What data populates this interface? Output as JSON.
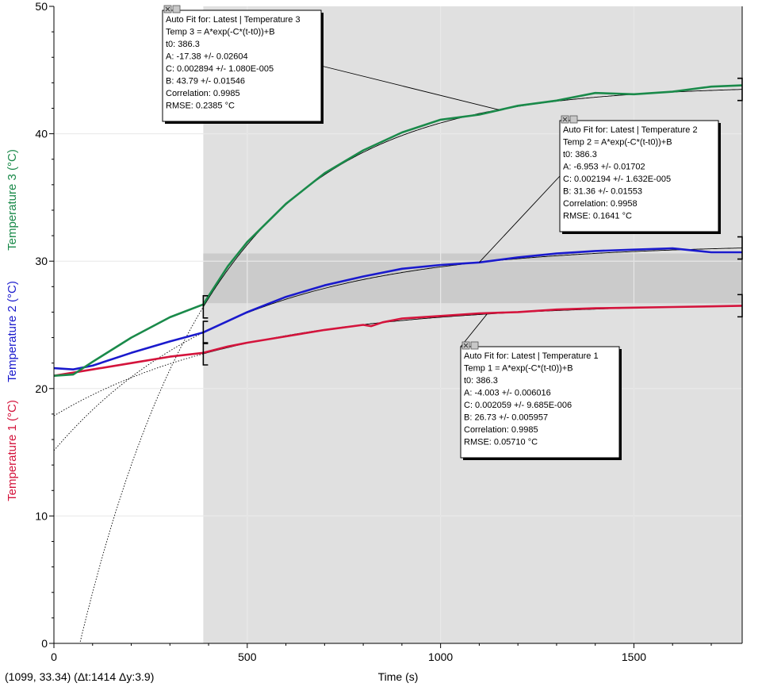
{
  "status_bar": "(1099, 33.34) (Δt:1414 Δy:3.9)",
  "chart_data": {
    "type": "line",
    "xlabel": "Time (s)",
    "xlim": [
      0,
      1780
    ],
    "ylim": [
      0,
      50
    ],
    "x_ticks": [
      0,
      500,
      1000,
      1500
    ],
    "y_ticks": [
      0,
      10,
      20,
      30,
      40,
      50
    ],
    "grid": true,
    "selection_region": {
      "x_start": 386.3,
      "x_end": 1780
    },
    "y_selection_band": [
      26.7,
      30.6
    ],
    "y_axis_labels": [
      {
        "text": "Temperature 1 (°C)",
        "color": "#d4143c"
      },
      {
        "text": "Temperature 2 (°C)",
        "color": "#1a1acd"
      },
      {
        "text": "Temperature 3 (°C)",
        "color": "#1a8a4a"
      }
    ],
    "series": [
      {
        "name": "Temperature 1",
        "color": "#d4143c",
        "x": [
          0,
          100,
          200,
          300,
          386,
          450,
          500,
          600,
          700,
          800,
          820,
          850,
          900,
          1000,
          1100,
          1200,
          1300,
          1400,
          1500,
          1600,
          1700,
          1780
        ],
        "y": [
          21.0,
          21.5,
          22.0,
          22.5,
          22.8,
          23.3,
          23.6,
          24.1,
          24.6,
          25.0,
          24.9,
          25.2,
          25.5,
          25.7,
          25.9,
          26.0,
          26.2,
          26.3,
          26.35,
          26.4,
          26.45,
          26.5
        ]
      },
      {
        "name": "Temperature 2",
        "color": "#1a1acd",
        "x": [
          0,
          50,
          100,
          200,
          300,
          386,
          450,
          500,
          600,
          700,
          800,
          900,
          1000,
          1100,
          1200,
          1300,
          1400,
          1500,
          1600,
          1700,
          1780
        ],
        "y": [
          21.6,
          21.5,
          21.8,
          22.8,
          23.7,
          24.4,
          25.3,
          26.0,
          27.2,
          28.1,
          28.8,
          29.4,
          29.7,
          29.9,
          30.3,
          30.6,
          30.8,
          30.9,
          31.0,
          30.7,
          30.7
        ]
      },
      {
        "name": "Temperature 3",
        "color": "#1a8a4a",
        "x": [
          0,
          50,
          100,
          200,
          300,
          386,
          420,
          450,
          500,
          600,
          700,
          800,
          900,
          1000,
          1100,
          1200,
          1300,
          1400,
          1500,
          1600,
          1700,
          1780
        ],
        "y": [
          21.0,
          21.1,
          22.1,
          24.0,
          25.6,
          26.6,
          28.2,
          29.6,
          31.5,
          34.5,
          36.9,
          38.7,
          40.1,
          41.1,
          41.5,
          42.2,
          42.6,
          43.2,
          43.1,
          43.3,
          43.7,
          43.8
        ]
      }
    ],
    "fit_curves": [
      {
        "name": "Temperature 3",
        "A": -17.38,
        "C": 0.002894,
        "B": 43.79,
        "t0": 386.3
      },
      {
        "name": "Temperature 2",
        "A": -6.953,
        "C": 0.002194,
        "B": 31.36,
        "t0": 386.3
      },
      {
        "name": "Temperature 1",
        "A": -4.003,
        "C": 0.002059,
        "B": 26.73,
        "t0": 386.3
      }
    ],
    "annotations": [
      {
        "series": "Temperature 3",
        "lines": [
          "Auto Fit for: Latest | Temperature 3",
          "Temp 3 = A*exp(-C*(t-t0))+B",
          "t0: 386.3",
          "A: -17.38 +/- 0.02604",
          "C: 0.002894 +/- 1.080E-005",
          "B: 43.79 +/- 0.01546",
          "Correlation: 0.9985",
          "RMSE: 0.2385 °C"
        ]
      },
      {
        "series": "Temperature 2",
        "lines": [
          "Auto Fit for: Latest | Temperature 2",
          "Temp 2 = A*exp(-C*(t-t0))+B",
          "t0: 386.3",
          "A: -6.953 +/- 0.01702",
          "C: 0.002194 +/- 1.632E-005",
          "B: 31.36 +/- 0.01553",
          "Correlation: 0.9958",
          "RMSE: 0.1641 °C"
        ]
      },
      {
        "series": "Temperature 1",
        "lines": [
          "Auto Fit for: Latest | Temperature 1",
          "Temp 1 = A*exp(-C*(t-t0))+B",
          "t0: 386.3",
          "A: -4.003 +/- 0.006016",
          "C: 0.002059 +/- 9.685E-006",
          "B: 26.73 +/- 0.005957",
          "Correlation: 0.9985",
          "RMSE: 0.05710 °C"
        ]
      }
    ]
  }
}
